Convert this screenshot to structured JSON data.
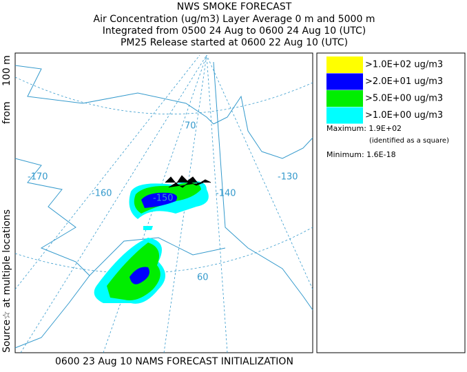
{
  "header": {
    "lines": [
      "NWS SMOKE FORECAST",
      "Air Concentration (ug/m3) Layer Average    0 m and  5000 m",
      "Integrated from 0500 24 Aug to 0600 24 Aug 10 (UTC)",
      "PM25 Release started at 0600 22 Aug 10 (UTC)"
    ]
  },
  "side_label": [
    "Source☆ at multiple locations",
    "from",
    "100 m"
  ],
  "footer": "0600 23 Aug 10 NAMS FORECAST INITIALIZATION",
  "map": {
    "labels": [
      "-170",
      "-160",
      "-150",
      "-140",
      "-130",
      "70",
      "60"
    ]
  },
  "legend": {
    "items": [
      {
        "label": ">1.0E+02 ug/m3",
        "color": "#ffff00"
      },
      {
        "label": ">2.0E+01 ug/m3",
        "color": "#0000ff"
      },
      {
        "label": ">5.0E+00 ug/m3",
        "color": "#00ee00"
      },
      {
        "label": ">1.0E+00 ug/m3",
        "color": "#00ffff"
      }
    ],
    "maximum": "Maximum: 1.9E+02",
    "max_note": "(identified as a square)",
    "minimum": "Minimum: 1.6E-18"
  }
}
